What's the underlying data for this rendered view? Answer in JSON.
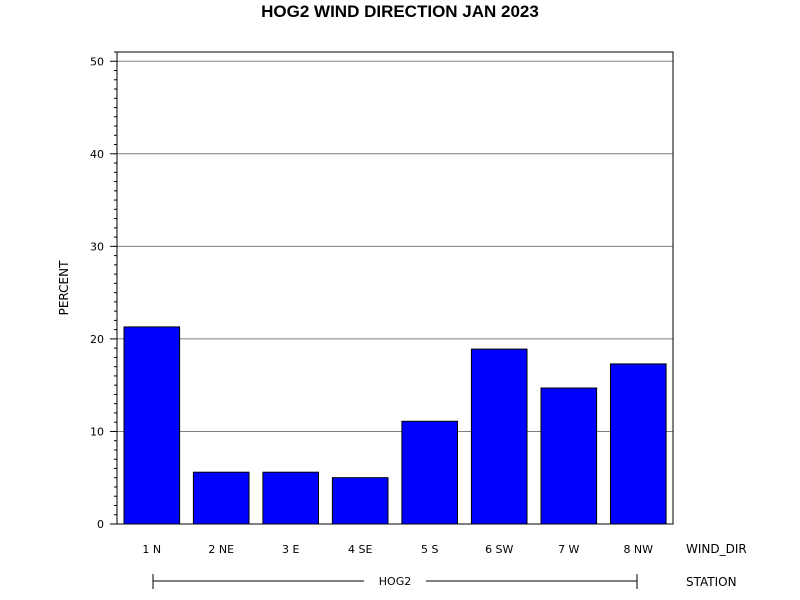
{
  "chart_data": {
    "type": "bar",
    "title": "HOG2 WIND DIRECTION JAN 2023",
    "ylabel": "PERCENT",
    "xlabel": "WIND_DIR",
    "group_axis_label": "STATION",
    "group_label": "HOG2",
    "categories": [
      "1 N",
      "2 NE",
      "3 E",
      "4 SE",
      "5 S",
      "6 SW",
      "7 W",
      "8 NW"
    ],
    "values": [
      21.3,
      5.6,
      5.6,
      5.0,
      11.1,
      18.9,
      14.7,
      17.3
    ],
    "ylim": [
      0,
      51
    ],
    "yticks": [
      0,
      10,
      20,
      30,
      40,
      50
    ],
    "ytick_labels": [
      "0",
      "10",
      "20",
      "30",
      "40",
      "50"
    ],
    "grid": true,
    "bar_color": "#0000ff",
    "bar_edge_color": "#000000",
    "grid_color": "#808080"
  }
}
